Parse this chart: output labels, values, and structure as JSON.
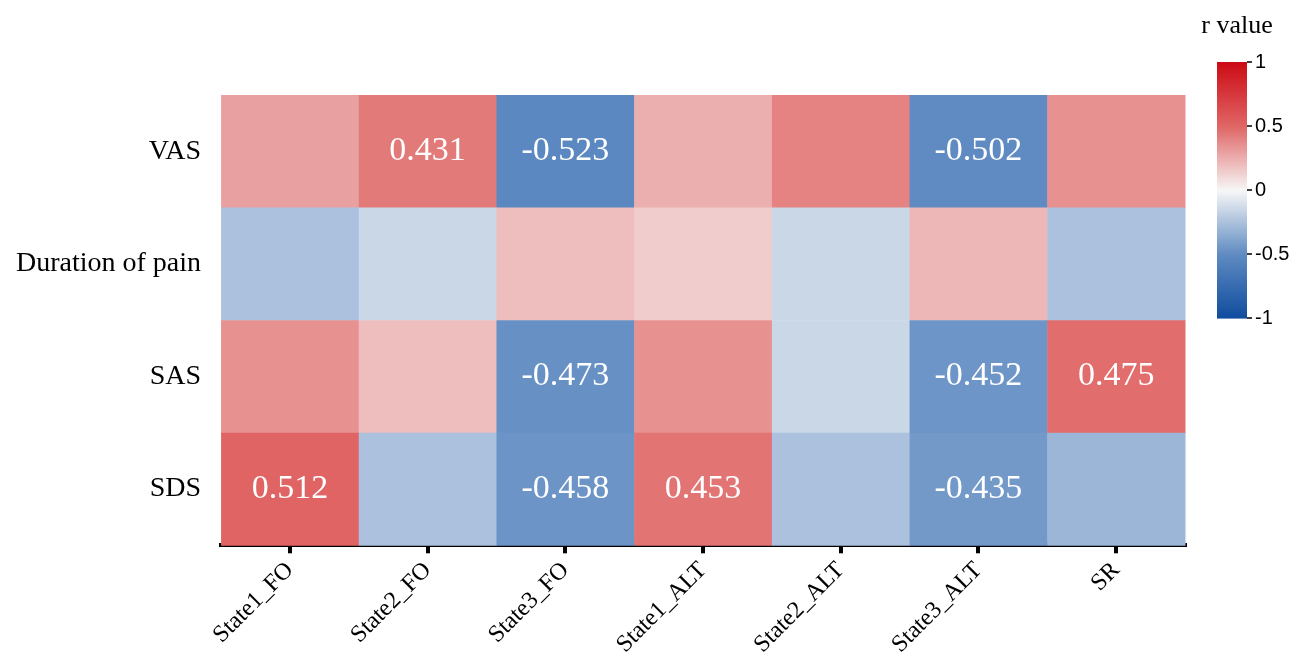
{
  "chart_data": {
    "type": "heatmap",
    "categories": [
      "State1_FO",
      "State2_FO",
      "State3_FO",
      "State1_ALT",
      "State2_ALT",
      "State3_ALT",
      "SR"
    ],
    "y_categories": [
      "VAS",
      "Duration of pain",
      "SAS",
      "SDS"
    ],
    "cells": [
      [
        0.3,
        0.431,
        -0.523,
        0.25,
        0.4,
        -0.502,
        0.35
      ],
      [
        -0.25,
        -0.15,
        0.2,
        0.15,
        -0.15,
        0.22,
        -0.25
      ],
      [
        0.35,
        0.2,
        -0.473,
        0.35,
        -0.15,
        -0.452,
        0.475
      ],
      [
        0.512,
        -0.25,
        -0.458,
        0.453,
        -0.25,
        -0.435,
        -0.3
      ]
    ],
    "cell_labels": [
      [
        null,
        "0.431",
        "-0.523",
        null,
        null,
        "-0.502",
        null
      ],
      [
        null,
        null,
        null,
        null,
        null,
        null,
        null
      ],
      [
        null,
        null,
        "-0.473",
        null,
        null,
        "-0.452",
        "0.475"
      ],
      [
        "0.512",
        null,
        "-0.458",
        "0.453",
        null,
        "-0.435",
        null
      ]
    ],
    "clabel": "r value",
    "clim": [
      -1,
      1
    ],
    "cticks": [
      -1,
      -0.5,
      0,
      0.5,
      1
    ]
  }
}
